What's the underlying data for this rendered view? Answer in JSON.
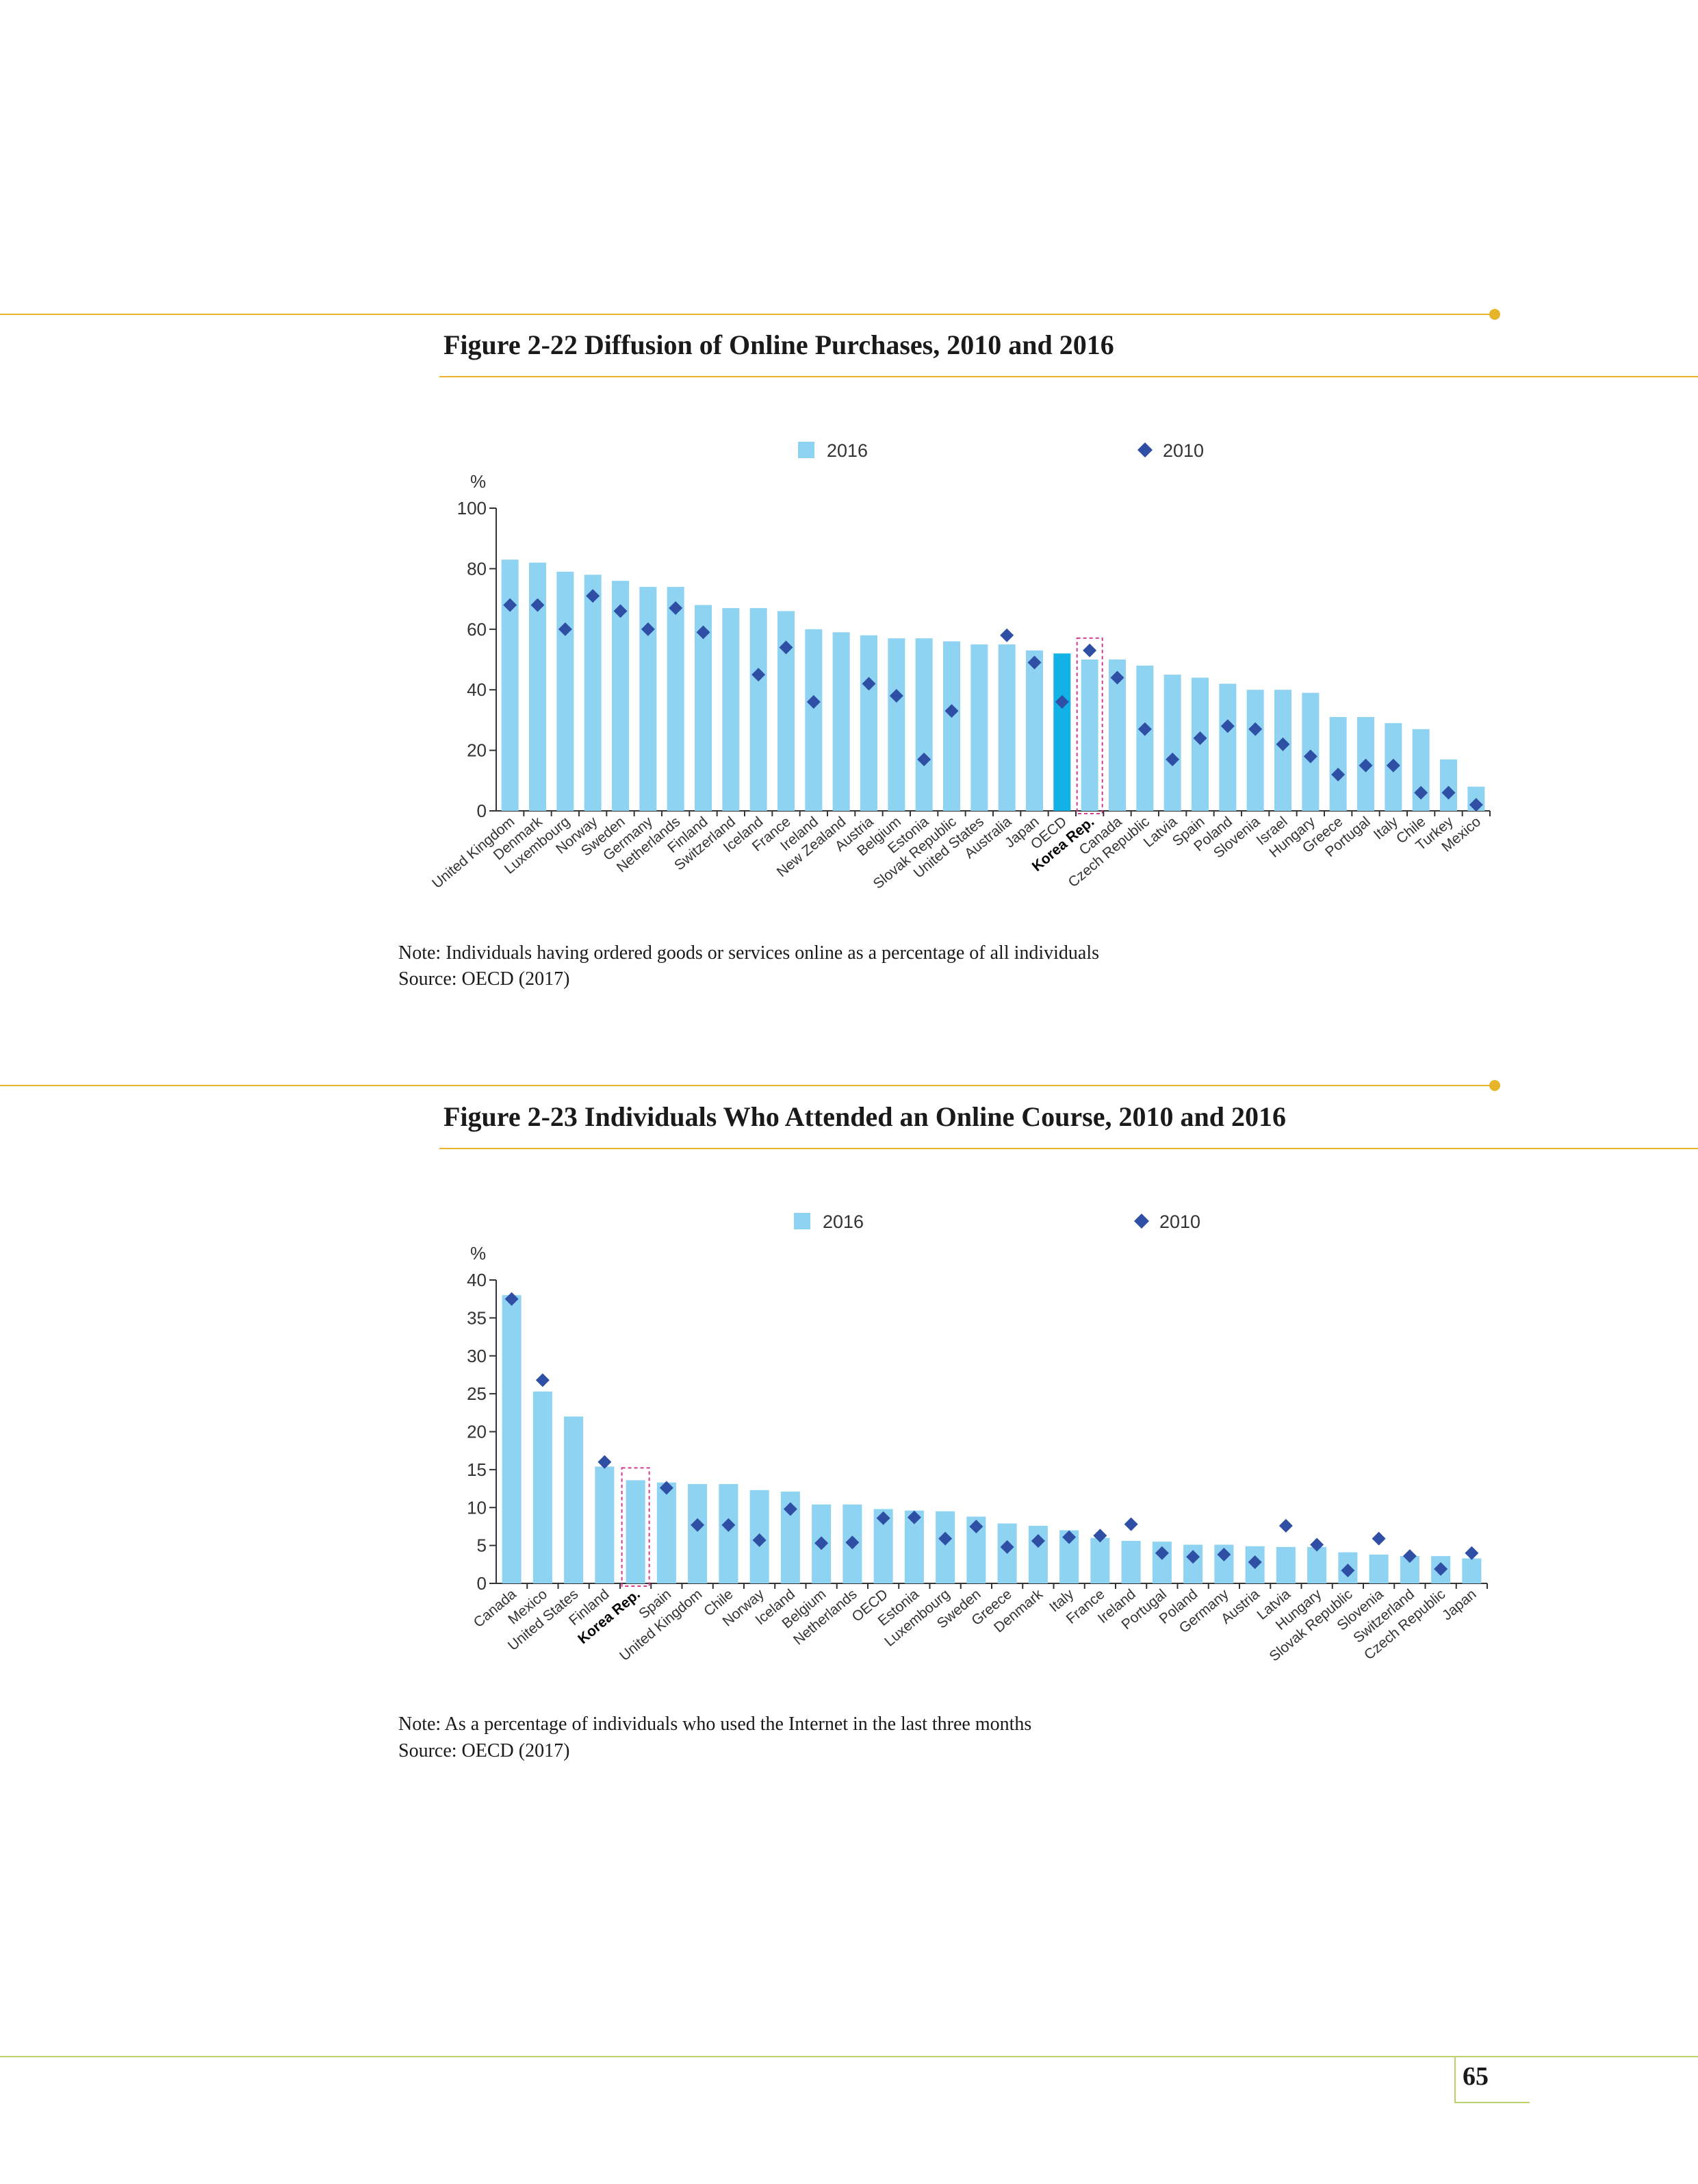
{
  "figures": [
    {
      "title": "Figure 2-22  Diffusion of Online Purchases, 2010 and 2016",
      "note": "Note: Individuals having ordered goods or services online as a percentage of all individuals",
      "source": "Source: OECD (2017)"
    },
    {
      "title": "Figure 2-23  Individuals Who Attended an Online Course, 2010 and 2016",
      "note": "Note: As a percentage of individuals who used the Internet in the last three months",
      "source": "Source: OECD (2017)"
    }
  ],
  "page_number": "65",
  "colors": {
    "bar": "#8fd3f2",
    "bar_highlight": "#12b2e6",
    "marker": "#2f4fa5",
    "highlight_box": "#d2398f",
    "rule": "#e8b52a",
    "footer_rule": "#b9d36a"
  },
  "chart_data": [
    {
      "type": "bar",
      "ylabel": "%",
      "ylim": [
        0,
        100
      ],
      "yticks": [
        0,
        20,
        40,
        60,
        80,
        100
      ],
      "legend_position": "top",
      "highlight": "Korea Rep.",
      "bar_highlight_category": "OECD",
      "categories": [
        "United Kingdom",
        "Denmark",
        "Luxembourg",
        "Norway",
        "Sweden",
        "Germany",
        "Netherlands",
        "Finland",
        "Switzerland",
        "Iceland",
        "France",
        "Ireland",
        "New Zealand",
        "Austria",
        "Belgium",
        "Estonia",
        "Slovak Republic",
        "United States",
        "Australia",
        "Japan",
        "OECD",
        "Korea Rep.",
        "Canada",
        "Czech Republic",
        "Latvia",
        "Spain",
        "Poland",
        "Slovenia",
        "Israel",
        "Hungary",
        "Greece",
        "Portugal",
        "Italy",
        "Chile",
        "Turkey",
        "Mexico"
      ],
      "series": [
        {
          "name": "2016",
          "kind": "bar",
          "values": [
            83,
            82,
            79,
            78,
            76,
            74,
            74,
            68,
            67,
            67,
            66,
            60,
            59,
            58,
            57,
            57,
            56,
            55,
            55,
            53,
            52,
            50,
            50,
            48,
            45,
            44,
            42,
            40,
            40,
            39,
            31,
            31,
            29,
            27,
            17,
            8
          ]
        },
        {
          "name": "2010",
          "kind": "marker",
          "values": [
            68,
            68,
            60,
            71,
            66,
            60,
            67,
            59,
            null,
            45,
            54,
            36,
            null,
            42,
            38,
            17,
            33,
            null,
            58,
            49,
            36,
            53,
            44,
            27,
            17,
            24,
            28,
            27,
            22,
            18,
            12,
            15,
            15,
            6,
            6,
            2
          ]
        }
      ]
    },
    {
      "type": "bar",
      "ylabel": "%",
      "ylim": [
        0,
        40
      ],
      "yticks": [
        0,
        5,
        10,
        15,
        20,
        25,
        30,
        35,
        40
      ],
      "legend_position": "top",
      "highlight": "Korea Rep.",
      "bar_highlight_category": null,
      "categories": [
        "Canada",
        "Mexico",
        "United States",
        "Finland",
        "Korea Rep.",
        "Spain",
        "United Kingdom",
        "Chile",
        "Norway",
        "Iceland",
        "Belgium",
        "Netherlands",
        "OECD",
        "Estonia",
        "Luxembourg",
        "Sweden",
        "Greece",
        "Denmark",
        "Italy",
        "France",
        "Ireland",
        "Portugal",
        "Poland",
        "Germany",
        "Austria",
        "Latvia",
        "Hungary",
        "Slovak Republic",
        "Slovenia",
        "Switzerland",
        "Czech Republic",
        "Japan"
      ],
      "series": [
        {
          "name": "2016",
          "kind": "bar",
          "values": [
            38,
            25.3,
            22,
            15.4,
            13.6,
            13.3,
            13.1,
            13.1,
            12.3,
            12.1,
            10.4,
            10.4,
            9.8,
            9.6,
            9.5,
            8.8,
            7.9,
            7.6,
            7,
            6,
            5.6,
            5.5,
            5.1,
            5.1,
            4.9,
            4.8,
            4.8,
            4.1,
            3.8,
            3.6,
            3.6,
            3.3
          ]
        },
        {
          "name": "2010",
          "kind": "marker",
          "values": [
            37.5,
            26.8,
            null,
            16,
            null,
            12.6,
            7.7,
            7.7,
            5.7,
            9.8,
            5.3,
            5.4,
            8.6,
            8.7,
            5.9,
            7.5,
            4.8,
            5.6,
            6.1,
            6.3,
            7.8,
            4,
            3.5,
            3.8,
            2.8,
            7.6,
            5.1,
            1.7,
            5.9,
            3.6,
            1.9,
            4
          ]
        }
      ]
    }
  ]
}
